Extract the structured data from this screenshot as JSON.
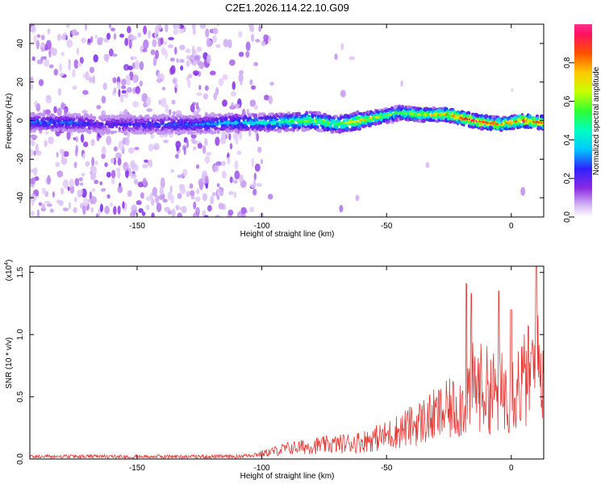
{
  "figure": {
    "title": "C2E1.2026.114.22.10.G09"
  },
  "chart_data": [
    {
      "type": "heatmap",
      "xlabel": "Height of straight line (km)",
      "ylabel": "Frequency (Hz)",
      "xlim": [
        -193,
        13
      ],
      "ylim": [
        -50,
        50
      ],
      "xticks": [
        -150,
        -100,
        -50,
        0
      ],
      "yticks": [
        -40,
        -20,
        0,
        20,
        40
      ],
      "colorbar": {
        "label": "Normalized spectral amplitude",
        "range": [
          0,
          1
        ],
        "ticks": [
          "0.0",
          "0.2",
          "0.4",
          "0.6",
          "0.8"
        ],
        "tick_values": [
          0.0,
          0.2,
          0.4,
          0.6,
          0.8
        ]
      },
      "signal_track": [
        {
          "x": -175,
          "freq": -1,
          "amp": 0.3
        },
        {
          "x": -165,
          "freq": -2,
          "amp": 0.22
        },
        {
          "x": -150,
          "freq": -2,
          "amp": 0.25
        },
        {
          "x": -140,
          "freq": -2,
          "amp": 0.28
        },
        {
          "x": -125,
          "freq": -2,
          "amp": 0.32
        },
        {
          "x": -110,
          "freq": -1,
          "amp": 0.38
        },
        {
          "x": -95,
          "freq": -1,
          "amp": 0.45
        },
        {
          "x": -80,
          "freq": 0,
          "amp": 0.62
        },
        {
          "x": -70,
          "freq": -2,
          "amp": 0.55
        },
        {
          "x": -60,
          "freq": 0,
          "amp": 0.78
        },
        {
          "x": -45,
          "freq": 4,
          "amp": 0.55
        },
        {
          "x": -35,
          "freq": 3,
          "amp": 0.7
        },
        {
          "x": -25,
          "freq": 3,
          "amp": 0.82
        },
        {
          "x": -15,
          "freq": 0,
          "amp": 0.95
        },
        {
          "x": -5,
          "freq": -2,
          "amp": 0.8
        },
        {
          "x": 5,
          "freq": 0,
          "amp": 0.92
        },
        {
          "x": 12,
          "freq": -1,
          "amp": 0.85
        }
      ]
    },
    {
      "type": "line",
      "xlabel": "Height of straight line (km)",
      "ylabel": "SNR (10 * v/v)",
      "y_multiplier": "(x10",
      "y_multiplier_exp": "4",
      "xlim": [
        -193,
        13
      ],
      "ylim": [
        0,
        1.55
      ],
      "xticks": [
        -150,
        -100,
        -50,
        0
      ],
      "yticks": [
        "0.0",
        "0.5",
        "1.0",
        "1.5"
      ],
      "ytick_values": [
        0.0,
        0.5,
        1.0,
        1.5
      ],
      "color": "#e53935",
      "envelope": [
        {
          "x": -193,
          "y": 0.02
        },
        {
          "x": -110,
          "y": 0.03
        },
        {
          "x": -100,
          "y": 0.06
        },
        {
          "x": -90,
          "y": 0.12
        },
        {
          "x": -80,
          "y": 0.15
        },
        {
          "x": -70,
          "y": 0.17
        },
        {
          "x": -60,
          "y": 0.2
        },
        {
          "x": -50,
          "y": 0.27
        },
        {
          "x": -40,
          "y": 0.38
        },
        {
          "x": -30,
          "y": 0.5
        },
        {
          "x": -20,
          "y": 0.62
        },
        {
          "x": -15,
          "y": 0.85
        },
        {
          "x": -5,
          "y": 0.75
        },
        {
          "x": 0,
          "y": 0.8
        },
        {
          "x": 5,
          "y": 0.9
        },
        {
          "x": 10,
          "y": 1.05
        },
        {
          "x": 13,
          "y": 1.0
        }
      ],
      "peaks": [
        {
          "x": -18,
          "y": 1.41
        },
        {
          "x": -16,
          "y": 1.33
        },
        {
          "x": -5,
          "y": 1.35
        },
        {
          "x": 0,
          "y": 1.2
        },
        {
          "x": 10,
          "y": 1.55
        }
      ]
    }
  ]
}
